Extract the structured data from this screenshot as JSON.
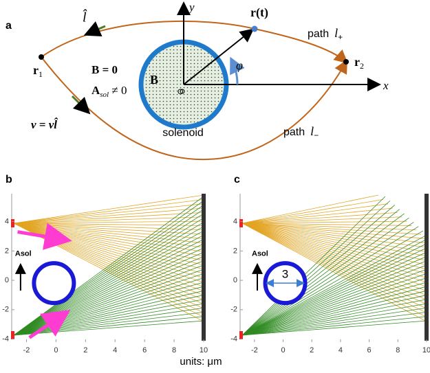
{
  "panel_a": {
    "label": "a",
    "l_hat": "l̂",
    "r_t": "r(t)",
    "path_plus": {
      "text": "path",
      "l": "l",
      "sub": "+"
    },
    "path_minus": {
      "text": "path",
      "l": "l",
      "sub": "−"
    },
    "r1": {
      "main": "r",
      "sub": "1"
    },
    "r2": {
      "main": "r",
      "sub": "2"
    },
    "b_zero": "B = 0",
    "a_sol": {
      "main": "A",
      "sub": "sol",
      "rest": " ≠ 0"
    },
    "b_inside": "B",
    "origin": "O",
    "phi": "φ",
    "velocity": "v = vl̂",
    "solenoid": "solenoid",
    "y_axis": "y",
    "x_axis": "x"
  },
  "panels": [
    {
      "label": "b",
      "xlim": [
        -3,
        10
      ],
      "ylim": [
        -4.3,
        5.9
      ],
      "xticks": [
        -2,
        0,
        2,
        4,
        6,
        8,
        10
      ],
      "yticks": [
        4,
        2,
        0,
        -2,
        -4
      ],
      "asol": "Asol"
    },
    {
      "label": "c",
      "xlim": [
        -3,
        10
      ],
      "ylim": [
        -4.3,
        5.9
      ],
      "xticks": [
        -2,
        0,
        2,
        4,
        6,
        8,
        10
      ],
      "yticks": [
        4,
        2,
        0,
        -2,
        -4
      ],
      "asol": "Asol",
      "diameter": "3"
    }
  ],
  "units": "units: μm"
}
